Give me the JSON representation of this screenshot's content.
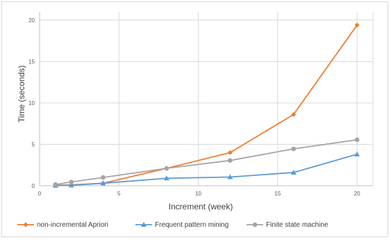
{
  "chart_data": {
    "type": "line",
    "xlabel": "Increment (week)",
    "ylabel": "Time (seconds)",
    "xlim": [
      0,
      21
    ],
    "ylim": [
      0,
      21
    ],
    "xticks": [
      0,
      5,
      10,
      15,
      20
    ],
    "yticks": [
      0,
      5,
      10,
      15,
      20
    ],
    "grid": "vertical and horizontal, light gray",
    "legend_position": "bottom",
    "x": [
      1,
      2,
      4,
      8,
      12,
      16,
      20
    ],
    "series": [
      {
        "name": "non-incremental Apriori",
        "values": [
          0.05,
          0.1,
          0.3,
          2.1,
          4.0,
          8.6,
          19.4
        ],
        "color": "#ed7d31",
        "marker": "diamond"
      },
      {
        "name": "Frequent pattern mining",
        "values": [
          0.02,
          0.05,
          0.3,
          0.9,
          1.05,
          1.6,
          3.8
        ],
        "color": "#5b9bd5",
        "marker": "triangle"
      },
      {
        "name": "Finite state machine",
        "values": [
          0.15,
          0.45,
          1.0,
          2.1,
          3.05,
          4.45,
          5.55
        ],
        "color": "#a5a5a5",
        "marker": "circle"
      }
    ]
  }
}
